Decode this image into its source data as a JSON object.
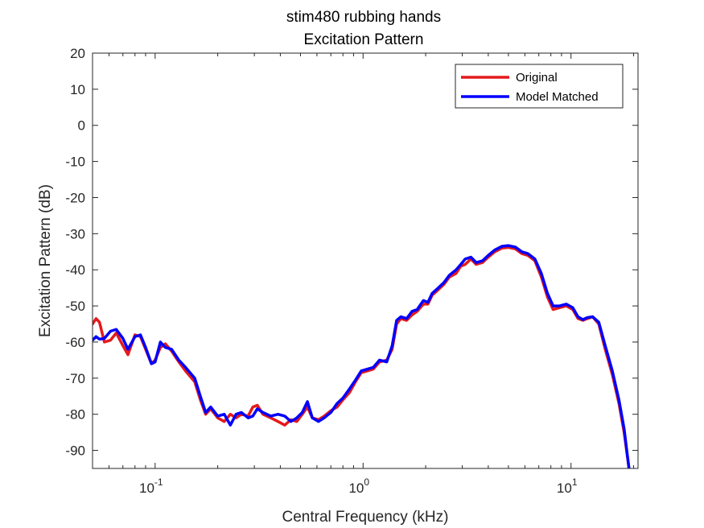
{
  "chart_data": {
    "type": "line",
    "title": "stim480 rubbing hands",
    "subtitle": "Excitation Pattern",
    "xlabel": "Central Frequency (kHz)",
    "ylabel": "Excitation Pattern (dB)",
    "xscale": "log",
    "xlim": [
      0.05,
      21
    ],
    "ylim": [
      -95,
      20
    ],
    "xticks": [
      0.1,
      1,
      10
    ],
    "xtick_labels": [
      {
        "base": "10",
        "exp": "-1"
      },
      {
        "base": "10",
        "exp": "0"
      },
      {
        "base": "10",
        "exp": "1"
      }
    ],
    "yticks": [
      20,
      10,
      0,
      -10,
      -20,
      -30,
      -40,
      -50,
      -60,
      -70,
      -80,
      -90
    ],
    "ytick_labels": [
      "20",
      "10",
      "0",
      "-10",
      "-20",
      "-30",
      "-40",
      "-50",
      "-60",
      "-70",
      "-80",
      "-90"
    ],
    "grid": false,
    "legend_position": "top-right",
    "series": [
      {
        "name": "Original",
        "color": "#e41a1c",
        "points": [
          [
            0.05,
            -55
          ],
          [
            0.052,
            -53.5
          ],
          [
            0.054,
            -54.5
          ],
          [
            0.057,
            -60
          ],
          [
            0.061,
            -59.5
          ],
          [
            0.065,
            -57.5
          ],
          [
            0.07,
            -61
          ],
          [
            0.074,
            -63.5
          ],
          [
            0.08,
            -58
          ],
          [
            0.085,
            -58.5
          ],
          [
            0.09,
            -62
          ],
          [
            0.096,
            -66
          ],
          [
            0.1,
            -65
          ],
          [
            0.106,
            -61.5
          ],
          [
            0.112,
            -60.5
          ],
          [
            0.12,
            -62.5
          ],
          [
            0.13,
            -65.5
          ],
          [
            0.14,
            -68
          ],
          [
            0.155,
            -71
          ],
          [
            0.165,
            -76
          ],
          [
            0.175,
            -80
          ],
          [
            0.185,
            -78.5
          ],
          [
            0.2,
            -81
          ],
          [
            0.215,
            -82
          ],
          [
            0.23,
            -80
          ],
          [
            0.245,
            -81
          ],
          [
            0.26,
            -80
          ],
          [
            0.28,
            -80.5
          ],
          [
            0.295,
            -78
          ],
          [
            0.31,
            -77.5
          ],
          [
            0.33,
            -80
          ],
          [
            0.36,
            -81
          ],
          [
            0.39,
            -82
          ],
          [
            0.42,
            -83
          ],
          [
            0.45,
            -81.5
          ],
          [
            0.48,
            -82
          ],
          [
            0.51,
            -80
          ],
          [
            0.54,
            -78
          ],
          [
            0.57,
            -81
          ],
          [
            0.61,
            -81.5
          ],
          [
            0.65,
            -80.5
          ],
          [
            0.7,
            -79
          ],
          [
            0.75,
            -78
          ],
          [
            0.8,
            -76
          ],
          [
            0.86,
            -74
          ],
          [
            0.92,
            -71
          ],
          [
            0.98,
            -68.5
          ],
          [
            1.05,
            -68
          ],
          [
            1.12,
            -67.5
          ],
          [
            1.2,
            -65.5
          ],
          [
            1.3,
            -65
          ],
          [
            1.38,
            -62
          ],
          [
            1.45,
            -55
          ],
          [
            1.52,
            -53.5
          ],
          [
            1.62,
            -54
          ],
          [
            1.72,
            -52.5
          ],
          [
            1.82,
            -51.5
          ],
          [
            1.95,
            -49.5
          ],
          [
            2.05,
            -49.5
          ],
          [
            2.15,
            -47
          ],
          [
            2.3,
            -45.5
          ],
          [
            2.45,
            -44
          ],
          [
            2.6,
            -42
          ],
          [
            2.8,
            -41
          ],
          [
            2.95,
            -39
          ],
          [
            3.1,
            -38.5
          ],
          [
            3.3,
            -37
          ],
          [
            3.5,
            -38.5
          ],
          [
            3.75,
            -38
          ],
          [
            4.0,
            -36.5
          ],
          [
            4.3,
            -35
          ],
          [
            4.65,
            -34
          ],
          [
            5.0,
            -33.8
          ],
          [
            5.4,
            -34.2
          ],
          [
            5.8,
            -35.5
          ],
          [
            6.2,
            -36
          ],
          [
            6.7,
            -37.5
          ],
          [
            7.2,
            -42
          ],
          [
            7.7,
            -47.5
          ],
          [
            8.2,
            -51
          ],
          [
            8.8,
            -50.5
          ],
          [
            9.5,
            -50
          ],
          [
            10.2,
            -51
          ],
          [
            10.8,
            -53.5
          ],
          [
            11.4,
            -54
          ],
          [
            12.0,
            -53.5
          ],
          [
            12.7,
            -53
          ],
          [
            13.6,
            -55
          ],
          [
            14.6,
            -62
          ],
          [
            15.8,
            -69
          ],
          [
            17.0,
            -77
          ],
          [
            18.0,
            -85
          ],
          [
            19.0,
            -95
          ]
        ]
      },
      {
        "name": "Model Matched",
        "color": "#0000ff",
        "points": [
          [
            0.05,
            -59.5
          ],
          [
            0.052,
            -58.5
          ],
          [
            0.054,
            -59.2
          ],
          [
            0.057,
            -59
          ],
          [
            0.061,
            -57
          ],
          [
            0.065,
            -56.5
          ],
          [
            0.07,
            -59
          ],
          [
            0.074,
            -62
          ],
          [
            0.08,
            -58.5
          ],
          [
            0.085,
            -58
          ],
          [
            0.09,
            -61.5
          ],
          [
            0.096,
            -66
          ],
          [
            0.1,
            -65.5
          ],
          [
            0.106,
            -60
          ],
          [
            0.112,
            -61.5
          ],
          [
            0.12,
            -62
          ],
          [
            0.13,
            -65
          ],
          [
            0.14,
            -67
          ],
          [
            0.155,
            -70
          ],
          [
            0.165,
            -75
          ],
          [
            0.175,
            -79.5
          ],
          [
            0.185,
            -78
          ],
          [
            0.2,
            -80.5
          ],
          [
            0.215,
            -80
          ],
          [
            0.23,
            -83
          ],
          [
            0.245,
            -80
          ],
          [
            0.26,
            -79.5
          ],
          [
            0.28,
            -81
          ],
          [
            0.295,
            -80.5
          ],
          [
            0.31,
            -78.5
          ],
          [
            0.33,
            -79.5
          ],
          [
            0.36,
            -80.5
          ],
          [
            0.39,
            -80
          ],
          [
            0.42,
            -80.5
          ],
          [
            0.45,
            -82
          ],
          [
            0.48,
            -81
          ],
          [
            0.51,
            -79.5
          ],
          [
            0.54,
            -76.5
          ],
          [
            0.57,
            -81
          ],
          [
            0.61,
            -82
          ],
          [
            0.65,
            -81
          ],
          [
            0.7,
            -79.5
          ],
          [
            0.75,
            -77
          ],
          [
            0.8,
            -75.5
          ],
          [
            0.86,
            -73
          ],
          [
            0.92,
            -70.5
          ],
          [
            0.98,
            -68
          ],
          [
            1.05,
            -67.5
          ],
          [
            1.12,
            -67
          ],
          [
            1.2,
            -65
          ],
          [
            1.3,
            -65.5
          ],
          [
            1.38,
            -61
          ],
          [
            1.45,
            -54
          ],
          [
            1.52,
            -53
          ],
          [
            1.62,
            -53.5
          ],
          [
            1.72,
            -51.5
          ],
          [
            1.82,
            -51
          ],
          [
            1.95,
            -48.5
          ],
          [
            2.05,
            -49
          ],
          [
            2.15,
            -46.5
          ],
          [
            2.3,
            -45
          ],
          [
            2.45,
            -43.5
          ],
          [
            2.6,
            -41.5
          ],
          [
            2.8,
            -40
          ],
          [
            2.95,
            -38.5
          ],
          [
            3.1,
            -37
          ],
          [
            3.3,
            -36.5
          ],
          [
            3.5,
            -38
          ],
          [
            3.75,
            -37.5
          ],
          [
            4.0,
            -36
          ],
          [
            4.3,
            -34.5
          ],
          [
            4.65,
            -33.5
          ],
          [
            5.0,
            -33.3
          ],
          [
            5.4,
            -33.7
          ],
          [
            5.8,
            -35
          ],
          [
            6.2,
            -35.5
          ],
          [
            6.7,
            -37
          ],
          [
            7.2,
            -41
          ],
          [
            7.7,
            -46.5
          ],
          [
            8.2,
            -50
          ],
          [
            8.8,
            -50
          ],
          [
            9.5,
            -49.5
          ],
          [
            10.2,
            -50.5
          ],
          [
            10.8,
            -53
          ],
          [
            11.4,
            -53.8
          ],
          [
            12.0,
            -53.2
          ],
          [
            12.7,
            -53
          ],
          [
            13.6,
            -54.5
          ],
          [
            14.6,
            -61
          ],
          [
            15.8,
            -68
          ],
          [
            17.0,
            -76
          ],
          [
            18.0,
            -84
          ],
          [
            19.0,
            -95
          ]
        ]
      }
    ]
  }
}
